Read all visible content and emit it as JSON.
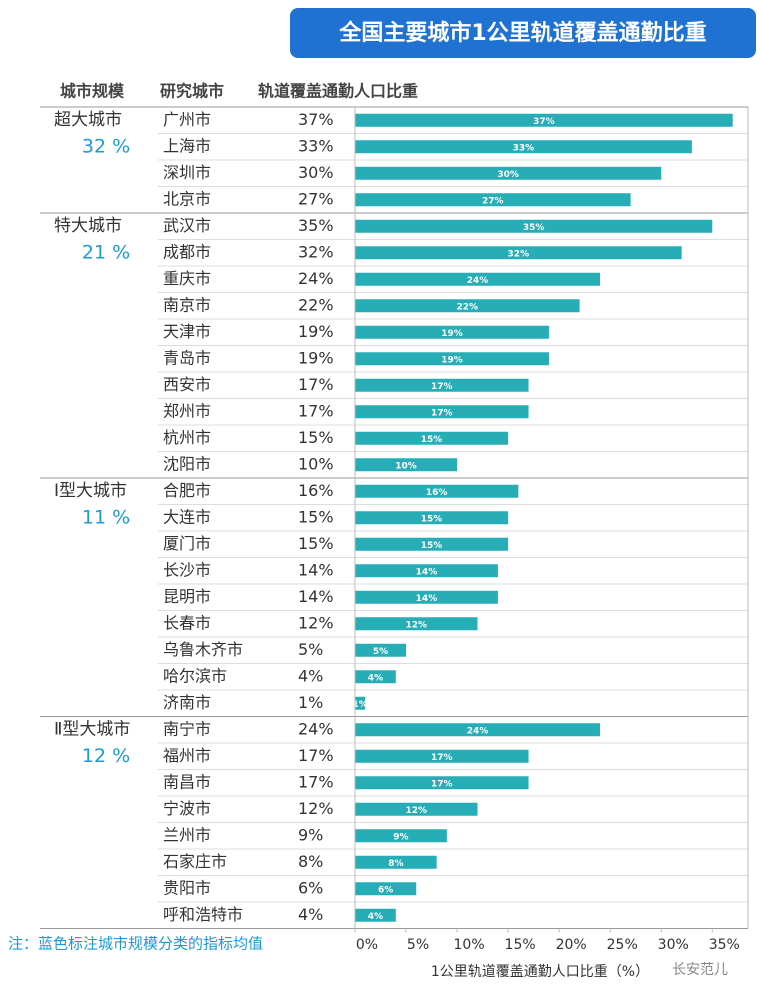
{
  "chart_data": {
    "type": "bar",
    "title": "全国主要城市1公里轨道覆盖通勤比重",
    "headers": [
      "城市规模",
      "研究城市",
      "轨道覆盖通勤人口比重"
    ],
    "groups": [
      {
        "name": "超大城市",
        "average": 32,
        "average_label": "32 %",
        "categories": [
          "广州市",
          "上海市",
          "深圳市",
          "北京市"
        ],
        "values": [
          37,
          33,
          30,
          27
        ],
        "value_labels": [
          "37%",
          "33%",
          "30%",
          "27%"
        ]
      },
      {
        "name": "特大城市",
        "average": 21,
        "average_label": "21 %",
        "categories": [
          "武汉市",
          "成都市",
          "重庆市",
          "南京市",
          "天津市",
          "青岛市",
          "西安市",
          "郑州市",
          "杭州市",
          "沈阳市"
        ],
        "values": [
          35,
          32,
          24,
          22,
          19,
          19,
          17,
          17,
          15,
          10
        ],
        "value_labels": [
          "35%",
          "32%",
          "24%",
          "22%",
          "19%",
          "19%",
          "17%",
          "17%",
          "15%",
          "10%"
        ]
      },
      {
        "name": "Ⅰ型大城市",
        "average": 11,
        "average_label": "11 %",
        "categories": [
          "合肥市",
          "大连市",
          "厦门市",
          "长沙市",
          "昆明市",
          "长春市",
          "乌鲁木齐市",
          "哈尔滨市",
          "济南市"
        ],
        "values": [
          16,
          15,
          15,
          14,
          14,
          12,
          5,
          4,
          1
        ],
        "value_labels": [
          "16%",
          "15%",
          "15%",
          "14%",
          "14%",
          "12%",
          "5%",
          "4%",
          "1%"
        ]
      },
      {
        "name": "Ⅱ型大城市",
        "average": 12,
        "average_label": "12 %",
        "categories": [
          "南宁市",
          "福州市",
          "南昌市",
          "宁波市",
          "兰州市",
          "石家庄市",
          "贵阳市",
          "呼和浩特市"
        ],
        "values": [
          24,
          17,
          17,
          12,
          9,
          8,
          6,
          4
        ],
        "value_labels": [
          "24%",
          "17%",
          "17%",
          "12%",
          "9%",
          "8%",
          "6%",
          "4%"
        ]
      }
    ],
    "color": "#27adb6",
    "xlim": [
      0,
      38.5
    ],
    "xticks": [
      {
        "value": 0,
        "label": "0%"
      },
      {
        "value": 5,
        "label": "5%"
      },
      {
        "value": 10,
        "label": "10%"
      },
      {
        "value": 15,
        "label": "15%"
      },
      {
        "value": 20,
        "label": "20%"
      },
      {
        "value": 25,
        "label": "25%"
      },
      {
        "value": 30,
        "label": "30%"
      },
      {
        "value": 35,
        "label": "35%"
      }
    ],
    "xlabel": "1公里轨道覆盖通勤人口比重（%）",
    "note": "注：蓝色标注城市规模分类的指标均值",
    "watermark": "长安范儿"
  }
}
